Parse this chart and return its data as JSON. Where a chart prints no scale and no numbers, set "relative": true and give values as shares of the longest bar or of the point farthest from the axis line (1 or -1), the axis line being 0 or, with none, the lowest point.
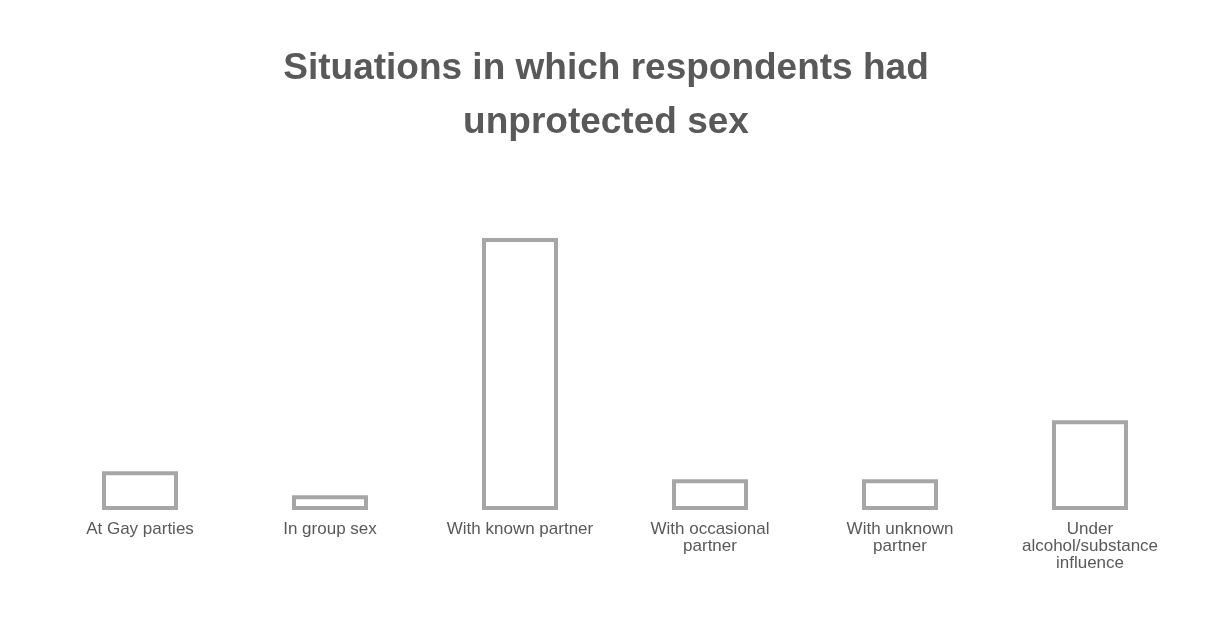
{
  "chart_data": {
    "type": "bar",
    "title": "Situations in which respondents had unprotected sex",
    "categories": [
      "At Gay parties",
      "In group sex",
      "With known partner",
      "With occasional partner",
      "With unknown partner",
      "Under alcohol/substance influence"
    ],
    "values": [
      0.13,
      0.04,
      1,
      0.1,
      0.1,
      0.32
    ],
    "color": "#a6a6a6",
    "relative": true,
    "grid": false,
    "legend": false
  }
}
